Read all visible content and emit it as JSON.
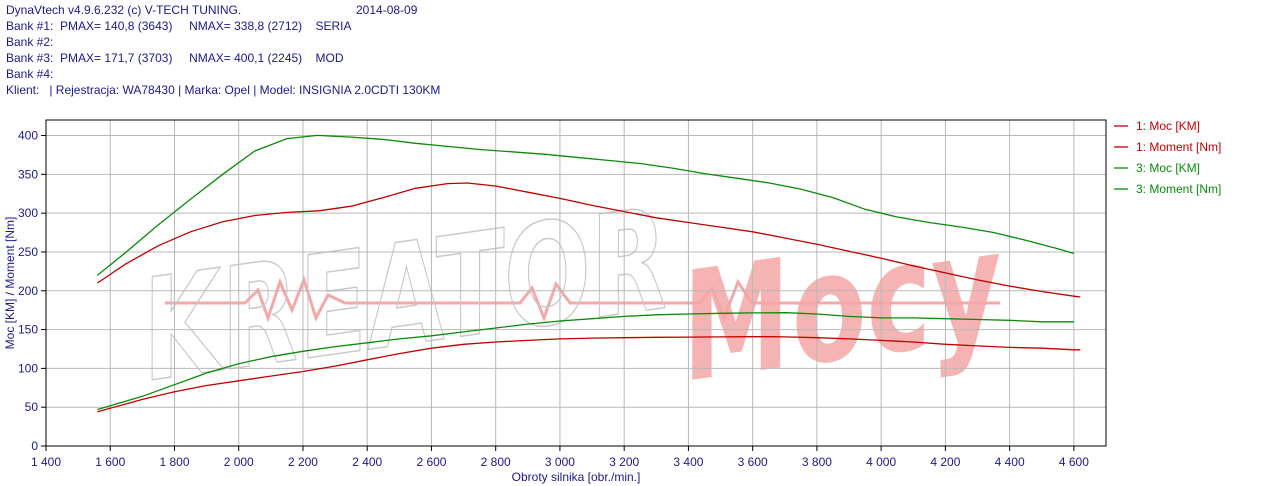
{
  "header": {
    "line1": "DynaVtech v4.9.6.232 (c) V-TECH TUNING.",
    "date": "2014-08-09",
    "bank1": "Bank #1:  PMAX= 140,8 (3643)     NMAX= 338,8 (2712)    SERIA",
    "bank2": "Bank #2:",
    "bank3": "Bank #3:  PMAX= 171,7 (3703)     NMAX= 400,1 (2245)    MOD",
    "bank4": "Bank #4:",
    "client": "Klient:   | Rejestracja: WA78430 | Marka: Opel | Model: INSIGNIA 2.0CDTI 130KM"
  },
  "watermark": {
    "text": "KREATOR Mocy"
  },
  "chart_data": {
    "type": "line",
    "xlabel": "Obroty silnika [obr./min.]",
    "ylabel": "Moc [KM] / Moment [Nm]",
    "xlim": [
      1400,
      4700
    ],
    "ylim": [
      0,
      420
    ],
    "xticks": [
      1400,
      1600,
      1800,
      2000,
      2200,
      2400,
      2600,
      2800,
      3000,
      3200,
      3400,
      3600,
      3800,
      4000,
      4200,
      4400,
      4600
    ],
    "xtick_labels": [
      "1 400",
      "1 600",
      "1 800",
      "2 000",
      "2 200",
      "2 400",
      "2 600",
      "2 800",
      "3 000",
      "3 200",
      "3 400",
      "3 600",
      "3 800",
      "4 000",
      "4 200",
      "4 400",
      "4 600"
    ],
    "yticks": [
      0,
      50,
      100,
      150,
      200,
      250,
      300,
      350,
      400
    ],
    "ytick_labels": [
      "0",
      "50",
      "100",
      "150",
      "200",
      "250",
      "300",
      "350",
      "400"
    ],
    "grid": true,
    "legend_position": "right",
    "series": [
      {
        "name": "1: Moc [KM]",
        "color": "#c00000",
        "x": [
          1560,
          1700,
          1800,
          1900,
          2000,
          2100,
          2200,
          2300,
          2400,
          2500,
          2600,
          2700,
          2800,
          2900,
          3000,
          3100,
          3200,
          3300,
          3400,
          3500,
          3600,
          3643,
          3700,
          3800,
          3900,
          4000,
          4100,
          4200,
          4300,
          4400,
          4500,
          4600,
          4620
        ],
        "y": [
          44,
          60,
          70,
          78,
          84,
          90,
          96,
          103,
          111,
          119,
          126,
          131,
          134,
          136,
          138,
          139,
          139.5,
          140,
          140.3,
          140.6,
          140.8,
          140.8,
          140.5,
          139.5,
          138,
          136,
          134,
          131,
          129,
          127,
          126,
          124,
          124
        ]
      },
      {
        "name": "1: Moment [Nm]",
        "color": "#c00000",
        "x": [
          1560,
          1650,
          1750,
          1850,
          1950,
          2050,
          2150,
          2250,
          2350,
          2450,
          2550,
          2650,
          2712,
          2800,
          2900,
          3000,
          3100,
          3200,
          3300,
          3400,
          3500,
          3600,
          3700,
          3800,
          3900,
          4000,
          4100,
          4200,
          4300,
          4400,
          4500,
          4600,
          4620
        ],
        "y": [
          210,
          235,
          258,
          276,
          289,
          297,
          301,
          303,
          309,
          320,
          332,
          338,
          338.8,
          335,
          327,
          319,
          310,
          302,
          294,
          288,
          282,
          276,
          268,
          260,
          251,
          242,
          232,
          223,
          214,
          206,
          199,
          193,
          192
        ]
      },
      {
        "name": "3: Moc [KM]",
        "color": "#0a8a0a",
        "x": [
          1560,
          1700,
          1800,
          1900,
          2000,
          2100,
          2200,
          2300,
          2400,
          2500,
          2600,
          2700,
          2800,
          2900,
          3000,
          3100,
          3200,
          3300,
          3400,
          3500,
          3600,
          3703,
          3800,
          3900,
          4000,
          4100,
          4200,
          4300,
          4400,
          4500,
          4600
        ],
        "y": [
          47,
          64,
          79,
          94,
          106,
          115,
          122,
          128,
          133,
          138,
          142,
          147,
          152,
          157,
          161,
          164,
          167,
          169,
          170,
          171,
          171.5,
          171.7,
          170,
          167,
          165,
          165,
          164,
          163,
          162,
          160,
          160
        ]
      },
      {
        "name": "3: Moment [Nm]",
        "color": "#0a8a0a",
        "x": [
          1560,
          1650,
          1750,
          1850,
          1950,
          2050,
          2150,
          2245,
          2350,
          2450,
          2550,
          2650,
          2750,
          2850,
          2950,
          3050,
          3150,
          3250,
          3350,
          3450,
          3550,
          3650,
          3750,
          3850,
          3950,
          4050,
          4150,
          4250,
          4350,
          4450,
          4550,
          4600
        ],
        "y": [
          220,
          250,
          285,
          318,
          350,
          380,
          396,
          400.1,
          398,
          395,
          390,
          386,
          382,
          379,
          376,
          372,
          368,
          364,
          358,
          351,
          345,
          339,
          331,
          320,
          305,
          295,
          288,
          282,
          275,
          265,
          254,
          248
        ]
      }
    ]
  }
}
